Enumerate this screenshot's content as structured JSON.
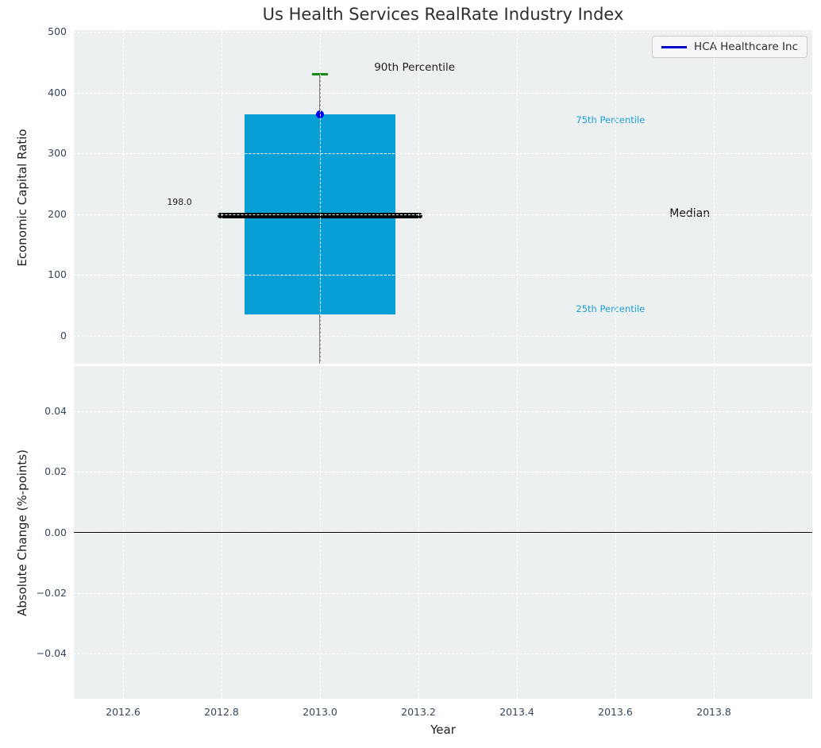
{
  "title": "Us Health Services RealRate Industry Index",
  "legend": {
    "label": "HCA Healthcare Inc",
    "line_color": "#0000cc"
  },
  "colors": {
    "axes_background": "#ecf0f1",
    "grid": "#ffffff",
    "box_fill": "#089ed6",
    "median_line": "#000000",
    "whisker": "#808080",
    "percentile_cap": "#148a14",
    "company_dot": "#0000ee",
    "percentile_text": "#1d9fd4",
    "tick_text": "#36455a",
    "zero_line": "#000000"
  },
  "chart_data": [
    {
      "type": "boxplot",
      "ylabel": "Economic Capital Ratio",
      "xlim": [
        2012.5,
        2014.0
      ],
      "ylim": [
        -46,
        503
      ],
      "yticks": {
        "values": [
          500,
          400,
          300,
          200,
          100,
          0
        ],
        "labels": [
          "500",
          "400",
          "300",
          "200",
          "100",
          "0"
        ]
      },
      "xticks": {
        "values": [
          2012.6,
          2012.8,
          2013.0,
          2013.2,
          2013.4,
          2013.6,
          2013.8
        ],
        "labels_visible": false
      },
      "grid": true,
      "legend_position": "upper right",
      "box": {
        "x": 2013.0,
        "box_width": 0.306,
        "median_width": 0.415,
        "cap_width": 0.032,
        "q1": 35,
        "median": 198,
        "q3": 365,
        "p90": 430,
        "whisker_low": -46,
        "whisker_low_clipped": true
      },
      "company_point": {
        "name": "HCA Healthcare Inc",
        "x": 2013.0,
        "y": 365
      },
      "annotations": {
        "median_value": {
          "text": "198.0",
          "x": 2012.74,
          "y": 219,
          "anchor": "right"
        },
        "p90_label": {
          "text": "90th Percentile",
          "x": 2013.11,
          "y": 441,
          "anchor": "left"
        },
        "p75_label": {
          "text": "75th Percentile",
          "x": 2013.52,
          "y": 355,
          "anchor": "left"
        },
        "median_label": {
          "text": "Median",
          "x": 2013.71,
          "y": 200,
          "anchor": "left"
        },
        "p25_label": {
          "text": "25th Percentile",
          "x": 2013.52,
          "y": 44,
          "anchor": "left"
        }
      }
    },
    {
      "type": "line",
      "ylabel": "Absolute Change (%-points)",
      "xlabel": "Year",
      "xlim": [
        2012.5,
        2014.0
      ],
      "ylim": [
        -0.055,
        0.055
      ],
      "yticks": {
        "values": [
          0.04,
          0.02,
          0.0,
          -0.02,
          -0.04
        ],
        "labels": [
          "0.04",
          "0.02",
          "0.00",
          "−0.02",
          "−0.04"
        ]
      },
      "xticks": {
        "values": [
          2012.6,
          2012.8,
          2013.0,
          2013.2,
          2013.4,
          2013.6,
          2013.8
        ],
        "labels": [
          "2012.6",
          "2012.8",
          "2013.0",
          "2013.2",
          "2013.4",
          "2013.6",
          "2013.8"
        ]
      },
      "grid": true,
      "zero_line_y": 0.0,
      "series": []
    }
  ]
}
